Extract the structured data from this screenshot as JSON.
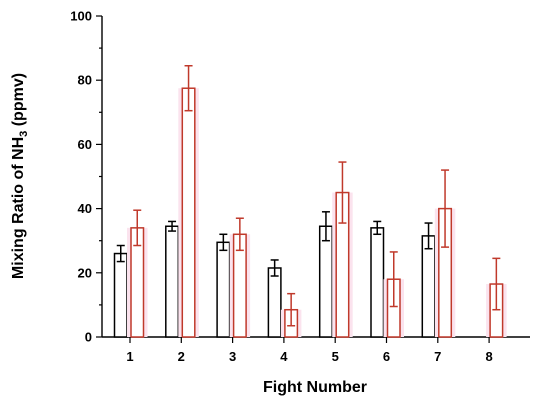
{
  "chart_data": {
    "type": "bar",
    "categories": [
      "1",
      "2",
      "3",
      "4",
      "5",
      "6",
      "7",
      "8"
    ],
    "series": [
      {
        "values": [
          26,
          34.5,
          29.5,
          21.5,
          34.5,
          34,
          31.5,
          null
        ],
        "errors": [
          2.5,
          1.5,
          2.5,
          2.5,
          4.5,
          2,
          4,
          null
        ],
        "color": "#000000"
      },
      {
        "values": [
          34,
          77.5,
          32,
          8.5,
          45,
          18,
          40,
          16.5
        ],
        "errors": [
          5.5,
          7,
          5,
          5,
          9.5,
          8.5,
          12,
          8
        ],
        "color": "#c0392b"
      }
    ],
    "xlabel": "Fight Number",
    "ylabel_main": "Mixing Ratio of NH",
    "ylabel_sub": "3",
    "ylabel_unit": " (ppmv)",
    "ylim": [
      0,
      100
    ],
    "yticks": [
      "0",
      "20",
      "40",
      "60",
      "80",
      "100"
    ]
  }
}
